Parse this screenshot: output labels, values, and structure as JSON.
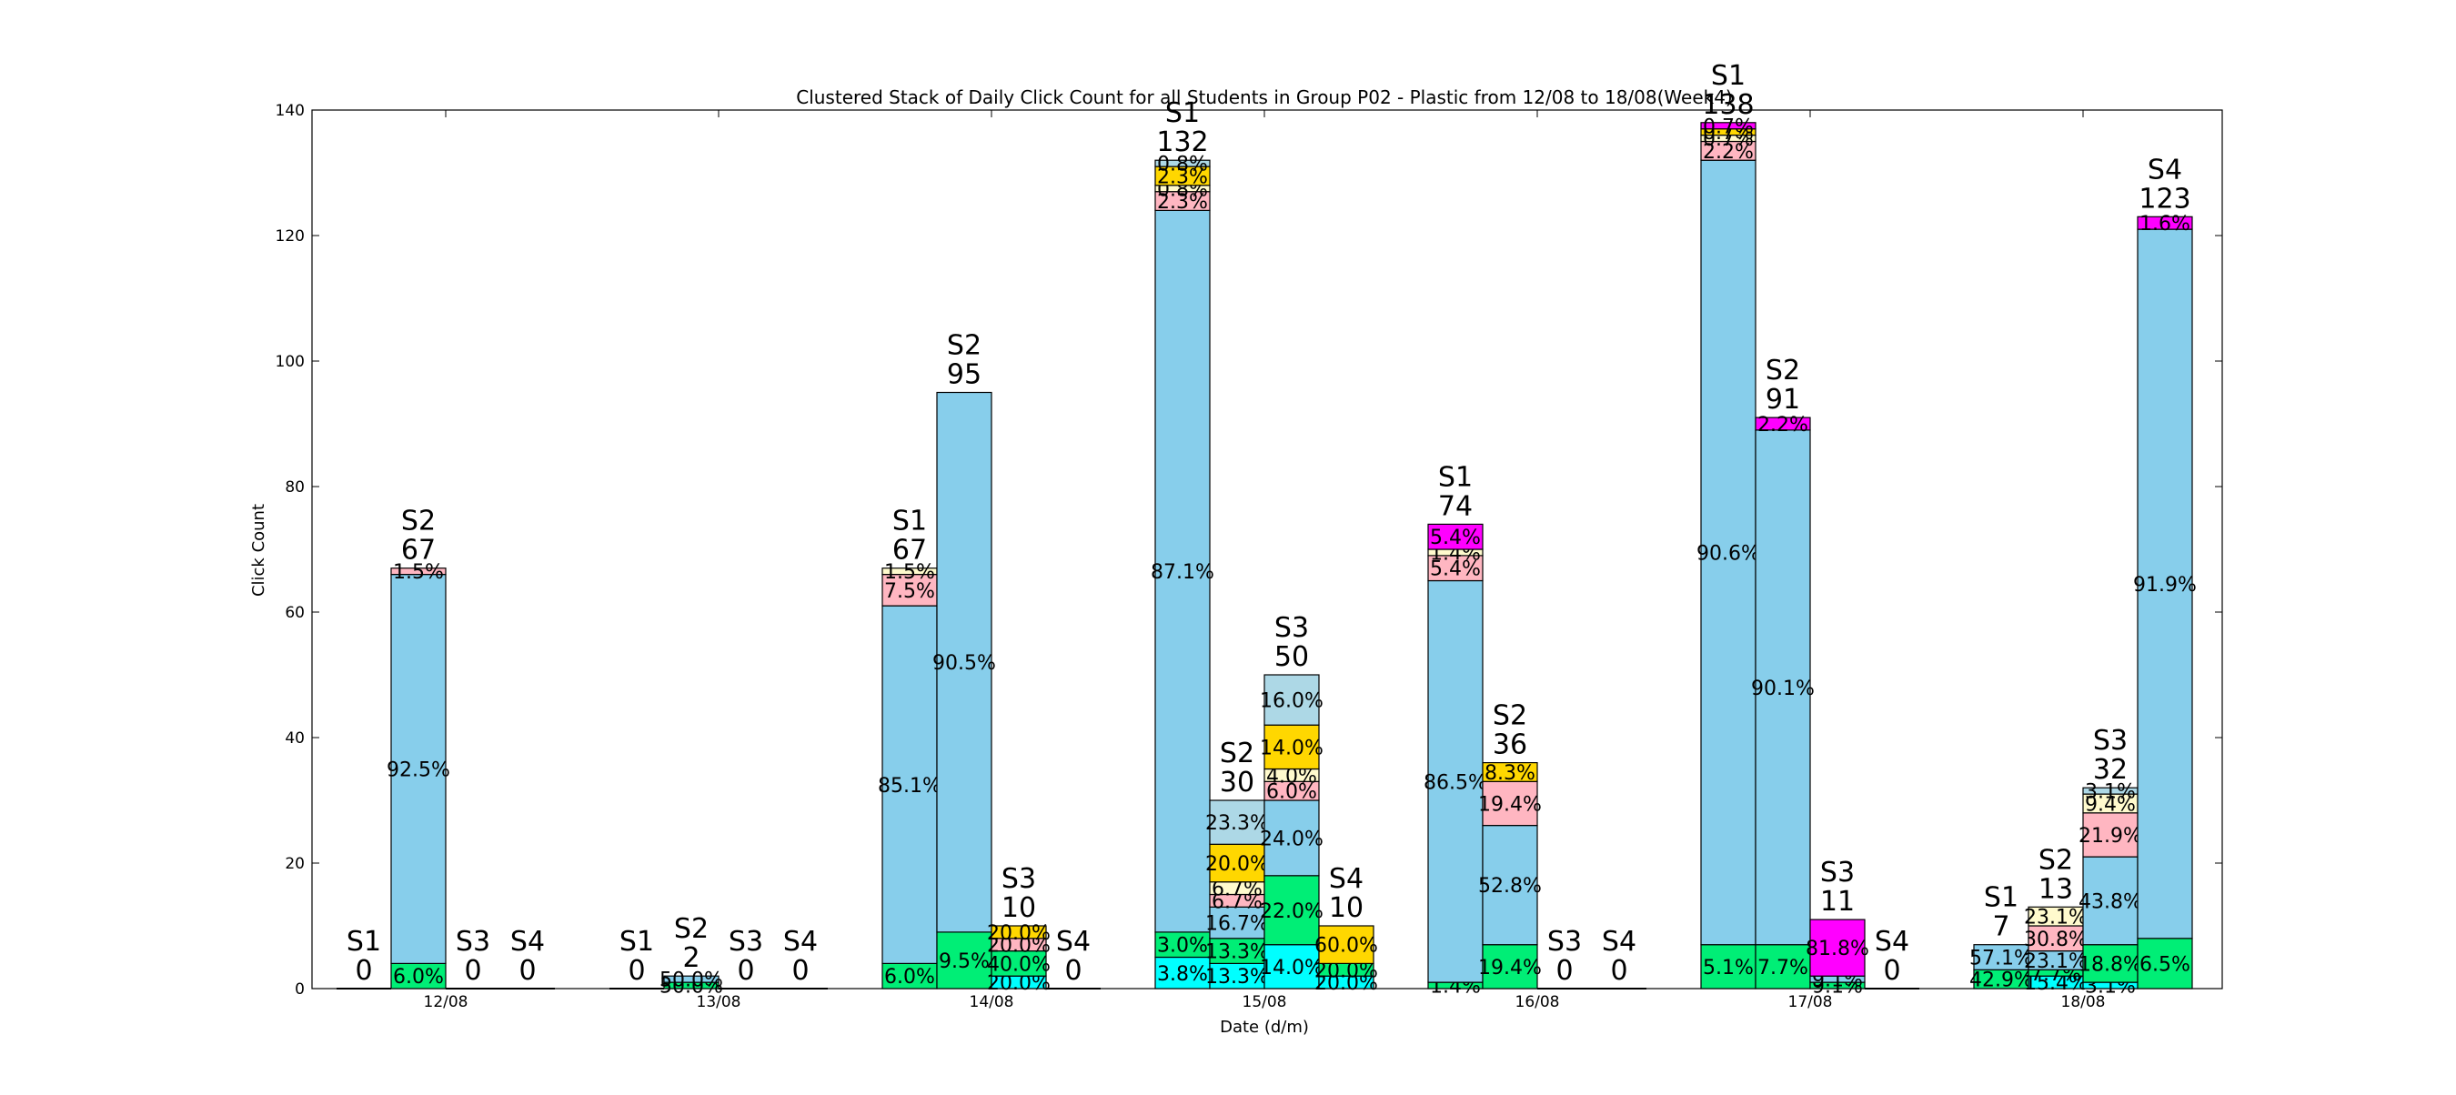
{
  "chart_data": {
    "type": "bar",
    "subtype": "clustered-stacked",
    "title": "Clustered Stack of Daily Click Count for all Students in Group P02 - Plastic from 12/08 to 18/08(Week4)",
    "xlabel": "Date (d/m)",
    "ylabel": "Click Count",
    "ylim": [
      0,
      140
    ],
    "yticks": [
      0,
      20,
      40,
      60,
      80,
      100,
      120,
      140
    ],
    "grid": false,
    "legend": "none",
    "categories": [
      "12/08",
      "13/08",
      "14/08",
      "15/08",
      "16/08",
      "17/08",
      "18/08"
    ],
    "groups": [
      {
        "date": "12/08",
        "bars": [
          {
            "student": "S1",
            "total": "0",
            "segments": []
          },
          {
            "student": "S2",
            "total": "67",
            "segments": [
              {
                "value": 4,
                "color": "#00ee76",
                "label": "6.0%"
              },
              {
                "value": 62,
                "color": "#87ceeb",
                "label": "92.5%"
              },
              {
                "value": 1,
                "color": "#ffb6c1",
                "label": "1.5%"
              }
            ]
          },
          {
            "student": "S3",
            "total": "0",
            "segments": []
          },
          {
            "student": "S4",
            "total": "0",
            "segments": []
          }
        ]
      },
      {
        "date": "13/08",
        "bars": [
          {
            "student": "S1",
            "total": "0",
            "segments": []
          },
          {
            "student": "S2",
            "total": "2",
            "segments": [
              {
                "value": 1,
                "color": "#00ee76",
                "label": "50.0%"
              },
              {
                "value": 1,
                "color": "#87ceeb",
                "label": "50.0%"
              }
            ]
          },
          {
            "student": "S3",
            "total": "0",
            "segments": []
          },
          {
            "student": "S4",
            "total": "0",
            "segments": []
          }
        ]
      },
      {
        "date": "14/08",
        "bars": [
          {
            "student": "S1",
            "total": "67",
            "segments": [
              {
                "value": 4,
                "color": "#00ee76",
                "label": "6.0%"
              },
              {
                "value": 57,
                "color": "#87ceeb",
                "label": "85.1%"
              },
              {
                "value": 5,
                "color": "#ffb6c1",
                "label": "7.5%"
              },
              {
                "value": 1,
                "color": "#fffacd",
                "label": "1.5%"
              }
            ]
          },
          {
            "student": "S2",
            "total": "95",
            "segments": [
              {
                "value": 9,
                "color": "#00ee76",
                "label": "9.5%"
              },
              {
                "value": 86,
                "color": "#87ceeb",
                "label": "90.5%"
              }
            ]
          },
          {
            "student": "S3",
            "total": "10",
            "segments": [
              {
                "value": 2,
                "color": "#00ffff",
                "label": "20.0%"
              },
              {
                "value": 4,
                "color": "#00ee76",
                "label": "40.0%"
              },
              {
                "value": 2,
                "color": "#ffb6c1",
                "label": "20.0%"
              },
              {
                "value": 2,
                "color": "#ffd700",
                "label": "20.0%"
              }
            ]
          },
          {
            "student": "S4",
            "total": "0",
            "segments": []
          }
        ]
      },
      {
        "date": "15/08",
        "bars": [
          {
            "student": "S1",
            "total": "132",
            "segments": [
              {
                "value": 5,
                "color": "#00ffff",
                "label": "3.8%"
              },
              {
                "value": 4,
                "color": "#00ee76",
                "label": "3.0%"
              },
              {
                "value": 115,
                "color": "#87ceeb",
                "label": "87.1%"
              },
              {
                "value": 3,
                "color": "#ffb6c1",
                "label": "2.3%"
              },
              {
                "value": 1,
                "color": "#fffacd",
                "label": "0.8%"
              },
              {
                "value": 3,
                "color": "#ffd700",
                "label": "2.3%"
              },
              {
                "value": 1,
                "color": "#add8e6",
                "label": "0.8%"
              }
            ]
          },
          {
            "student": "S2",
            "total": "30",
            "segments": [
              {
                "value": 4,
                "color": "#00ffff",
                "label": "13.3%"
              },
              {
                "value": 4,
                "color": "#00ee76",
                "label": "13.3%"
              },
              {
                "value": 5,
                "color": "#87ceeb",
                "label": "16.7%"
              },
              {
                "value": 2,
                "color": "#ffb6c1",
                "label": "6.7%"
              },
              {
                "value": 2,
                "color": "#fffacd",
                "label": "6.7%"
              },
              {
                "value": 6,
                "color": "#ffd700",
                "label": "20.0%"
              },
              {
                "value": 7,
                "color": "#add8e6",
                "label": "23.3%"
              }
            ]
          },
          {
            "student": "S3",
            "total": "50",
            "segments": [
              {
                "value": 7,
                "color": "#00ffff",
                "label": "14.0%"
              },
              {
                "value": 11,
                "color": "#00ee76",
                "label": "22.0%"
              },
              {
                "value": 12,
                "color": "#87ceeb",
                "label": "24.0%"
              },
              {
                "value": 3,
                "color": "#ffb6c1",
                "label": "6.0%"
              },
              {
                "value": 2,
                "color": "#fffacd",
                "label": "4.0%"
              },
              {
                "value": 7,
                "color": "#ffd700",
                "label": "14.0%"
              },
              {
                "value": 8,
                "color": "#add8e6",
                "label": "16.0%"
              }
            ]
          },
          {
            "student": "S4",
            "total": "10",
            "segments": [
              {
                "value": 2,
                "color": "#00ffff",
                "label": "20.0%"
              },
              {
                "value": 2,
                "color": "#00ee76",
                "label": "20.0%"
              },
              {
                "value": 6,
                "color": "#ffd700",
                "label": "60.0%"
              }
            ]
          }
        ]
      },
      {
        "date": "16/08",
        "bars": [
          {
            "student": "S1",
            "total": "74",
            "segments": [
              {
                "value": 1,
                "color": "#00ee76",
                "label": "1.4%"
              },
              {
                "value": 64,
                "color": "#87ceeb",
                "label": "86.5%"
              },
              {
                "value": 4,
                "color": "#ffb6c1",
                "label": "5.4%"
              },
              {
                "value": 1,
                "color": "#fffacd",
                "label": "1.4%"
              },
              {
                "value": 4,
                "color": "#ff00ff",
                "label": "5.4%"
              }
            ]
          },
          {
            "student": "S2",
            "total": "36",
            "segments": [
              {
                "value": 7,
                "color": "#00ee76",
                "label": "19.4%"
              },
              {
                "value": 19,
                "color": "#87ceeb",
                "label": "52.8%"
              },
              {
                "value": 7,
                "color": "#ffb6c1",
                "label": "19.4%"
              },
              {
                "value": 3,
                "color": "#ffd700",
                "label": "8.3%"
              }
            ]
          },
          {
            "student": "S3",
            "total": "0",
            "segments": []
          },
          {
            "student": "S4",
            "total": "0",
            "segments": []
          }
        ]
      },
      {
        "date": "17/08",
        "bars": [
          {
            "student": "S1",
            "total": "138",
            "segments": [
              {
                "value": 7,
                "color": "#00ee76",
                "label": "5.1%"
              },
              {
                "value": 125,
                "color": "#87ceeb",
                "label": "90.6%"
              },
              {
                "value": 3,
                "color": "#ffb6c1",
                "label": "2.2%"
              },
              {
                "value": 1,
                "color": "#fffacd",
                "label": "0.7%"
              },
              {
                "value": 1,
                "color": "#ffd700",
                "label": "0.7%"
              },
              {
                "value": 1,
                "color": "#ff00ff",
                "label": "0.7%"
              }
            ]
          },
          {
            "student": "S2",
            "total": "91",
            "segments": [
              {
                "value": 7,
                "color": "#00ee76",
                "label": "7.7%"
              },
              {
                "value": 82,
                "color": "#87ceeb",
                "label": "90.1%"
              },
              {
                "value": 2,
                "color": "#ff00ff",
                "label": "2.2%"
              }
            ]
          },
          {
            "student": "S3",
            "total": "11",
            "segments": [
              {
                "value": 1,
                "color": "#00ee76",
                "label": "9.1%"
              },
              {
                "value": 1,
                "color": "#87ceeb",
                "label": "9.1%"
              },
              {
                "value": 9,
                "color": "#ff00ff",
                "label": "81.8%"
              }
            ]
          },
          {
            "student": "S4",
            "total": "0",
            "segments": []
          }
        ]
      },
      {
        "date": "18/08",
        "bars": [
          {
            "student": "S1",
            "total": "7",
            "segments": [
              {
                "value": 3,
                "color": "#00ee76",
                "label": "42.9%"
              },
              {
                "value": 4,
                "color": "#87ceeb",
                "label": "57.1%"
              }
            ]
          },
          {
            "student": "S2",
            "total": "13",
            "segments": [
              {
                "value": 2,
                "color": "#00ffff",
                "label": "15.4%"
              },
              {
                "value": 1,
                "color": "#00ee76",
                "label": "7.7%"
              },
              {
                "value": 3,
                "color": "#87ceeb",
                "label": "23.1%"
              },
              {
                "value": 4,
                "color": "#ffb6c1",
                "label": "30.8%"
              },
              {
                "value": 3,
                "color": "#fffacd",
                "label": "23.1%"
              }
            ]
          },
          {
            "student": "S3",
            "total": "32",
            "segments": [
              {
                "value": 1,
                "color": "#00ffff",
                "label": "3.1%"
              },
              {
                "value": 6,
                "color": "#00ee76",
                "label": "18.8%"
              },
              {
                "value": 14,
                "color": "#87ceeb",
                "label": "43.8%"
              },
              {
                "value": 7,
                "color": "#ffb6c1",
                "label": "21.9%"
              },
              {
                "value": 3,
                "color": "#fffacd",
                "label": "9.4%"
              },
              {
                "value": 1,
                "color": "#add8e6",
                "label": "3.1%"
              }
            ]
          },
          {
            "student": "S4",
            "total": "123",
            "segments": [
              {
                "value": 8,
                "color": "#00ee76",
                "label": "6.5%"
              },
              {
                "value": 113,
                "color": "#87ceeb",
                "label": "91.9%"
              },
              {
                "value": 2,
                "color": "#ff00ff",
                "label": "1.6%"
              }
            ]
          }
        ]
      }
    ]
  }
}
